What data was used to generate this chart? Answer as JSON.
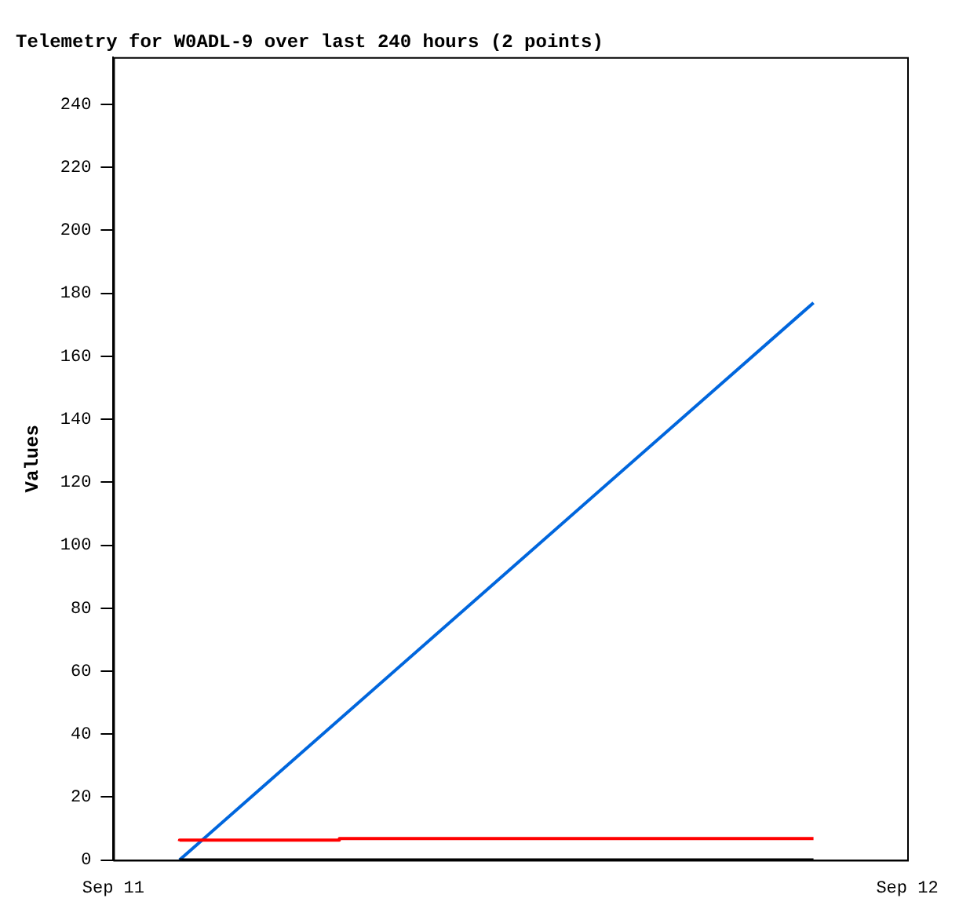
{
  "chart_data": {
    "type": "line",
    "title": "Telemetry for W0ADL-9 over last 240 hours (2 points)",
    "ylabel": "Values",
    "xlim": [
      "--09-11",
      "--09-12"
    ],
    "xticks": [
      {
        "value": "--09-11",
        "label": "Sep 11"
      },
      {
        "value": "--09-12",
        "label": "Sep 12"
      }
    ],
    "ylim": [
      0,
      255
    ],
    "yticks": [
      0,
      20,
      40,
      60,
      80,
      100,
      120,
      140,
      160,
      180,
      200,
      220,
      240
    ],
    "grid": false,
    "legend": false,
    "marker": "none",
    "series": [
      {
        "color": "#000000",
        "x": [
          "--09-11T02:00",
          "--09-11T21:10"
        ],
        "values": [
          0,
          0
        ]
      },
      {
        "type": "step",
        "color": "#ff0000",
        "x": [
          "--09-11T02:00",
          "--09-11T06:50",
          "--09-11T16:25",
          "--09-11T21:10"
        ],
        "values": [
          6.0,
          6.3,
          6.8,
          6.8
        ]
      },
      {
        "color": "#0066dd",
        "x": [
          "--09-11T02:00",
          "--09-11T21:10"
        ],
        "values": [
          0,
          177
        ]
      }
    ]
  }
}
